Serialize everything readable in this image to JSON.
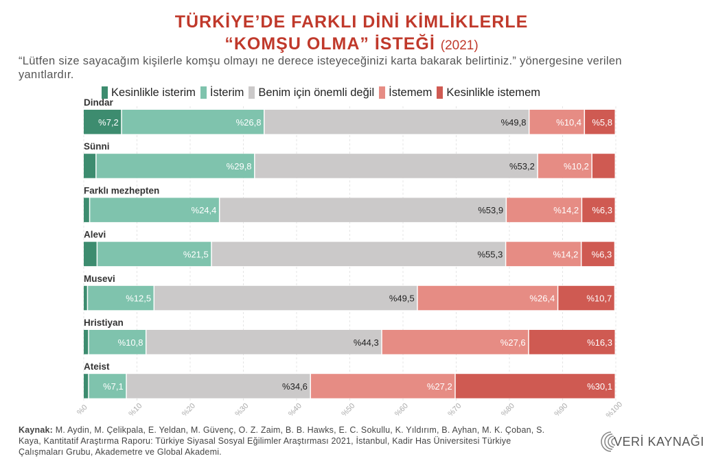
{
  "title_line1": "TÜRKİYE’DE FARKLI DİNİ KİMLİKLERLE",
  "title_line2": "“KOMŞU OLMA” İSTEĞİ",
  "title_year": "(2021)",
  "subtitle": "“Lütfen size sayacağım kişilerle komşu olmayı ne derece isteyeceğinizi karta bakarak belirtiniz.” yönergesine verilen yanıtlardır.",
  "legend": [
    {
      "label": "Kesinlikle isterim",
      "color": "#3d8c6f"
    },
    {
      "label": "İsterim",
      "color": "#7fc3ad"
    },
    {
      "label": "Benim için önemli değil",
      "color": "#cbc9c9"
    },
    {
      "label": "İstemem",
      "color": "#e68c84"
    },
    {
      "label": "Kesinlikle istemem",
      "color": "#cf5a52"
    }
  ],
  "chart_data": {
    "type": "bar",
    "orientation": "horizontal",
    "stacked": true,
    "categories": [
      "Dindar",
      "Sünni",
      "Farklı mezhepten",
      "Alevi",
      "Musevi",
      "Hristiyan",
      "Ateist"
    ],
    "series": [
      {
        "name": "Kesinlikle isterim",
        "values": [
          7.2,
          2.4,
          1.2,
          2.6,
          0.8,
          1.0,
          1.0
        ],
        "labels": [
          "%7,2",
          "",
          "",
          "",
          "",
          "",
          ""
        ]
      },
      {
        "name": "İsterim",
        "values": [
          26.8,
          29.8,
          24.4,
          21.5,
          12.5,
          10.8,
          7.1
        ],
        "labels": [
          "%26,8",
          "%29,8",
          "%24,4",
          "%21,5",
          "%12,5",
          "%10,8",
          "%7,1"
        ]
      },
      {
        "name": "Benim için önemli değil",
        "values": [
          49.8,
          53.2,
          53.9,
          55.3,
          49.5,
          44.3,
          34.6
        ],
        "labels": [
          "%49,8",
          "%53,2",
          "%53,9",
          "%55,3",
          "%49,5",
          "%44,3",
          "%34,6"
        ]
      },
      {
        "name": "İstemem",
        "values": [
          10.4,
          10.2,
          14.2,
          14.2,
          26.4,
          27.6,
          27.2
        ],
        "labels": [
          "%10,4",
          "%10,2",
          "%14,2",
          "%14,2",
          "%26,4",
          "%27,6",
          "%27,2"
        ]
      },
      {
        "name": "Kesinlikle istemem",
        "values": [
          5.8,
          4.4,
          6.3,
          6.3,
          10.7,
          16.3,
          30.1
        ],
        "labels": [
          "%5,8",
          "",
          "%6,3",
          "%6,3",
          "%10,7",
          "%16,3",
          "%30,1"
        ]
      }
    ],
    "xlim": [
      0,
      100
    ],
    "x_ticks": [
      0,
      10,
      20,
      30,
      40,
      50,
      60,
      70,
      80,
      90,
      100
    ],
    "x_tick_labels": [
      "%0",
      "%10",
      "%20",
      "%30",
      "%40",
      "%50",
      "%60",
      "%70",
      "%80",
      "%90",
      "%100"
    ],
    "grid": true
  },
  "footer_label": "Kaynak:",
  "footer_text": " M. Aydin, M. Çelikpala, E. Yeldan, M. Güvenç, O. Z. Zaim, B. B. Hawks, E. C. Sokullu, K. Yıldırım, B. Ayhan, M. K. Çoban, S. Kaya, Kantitatif Araştırma Raporu: Türkiye Siyasal Sosyal Eğilimler Araştırması 2021, İstanbul, Kadir Has Üniversitesi Türkiye Çalışmaları Grubu, Akademetre ve Global Akademi.",
  "logo_text": "VERİ KAYNAĞI",
  "logo_icon": "concentric-arcs-logo-icon"
}
